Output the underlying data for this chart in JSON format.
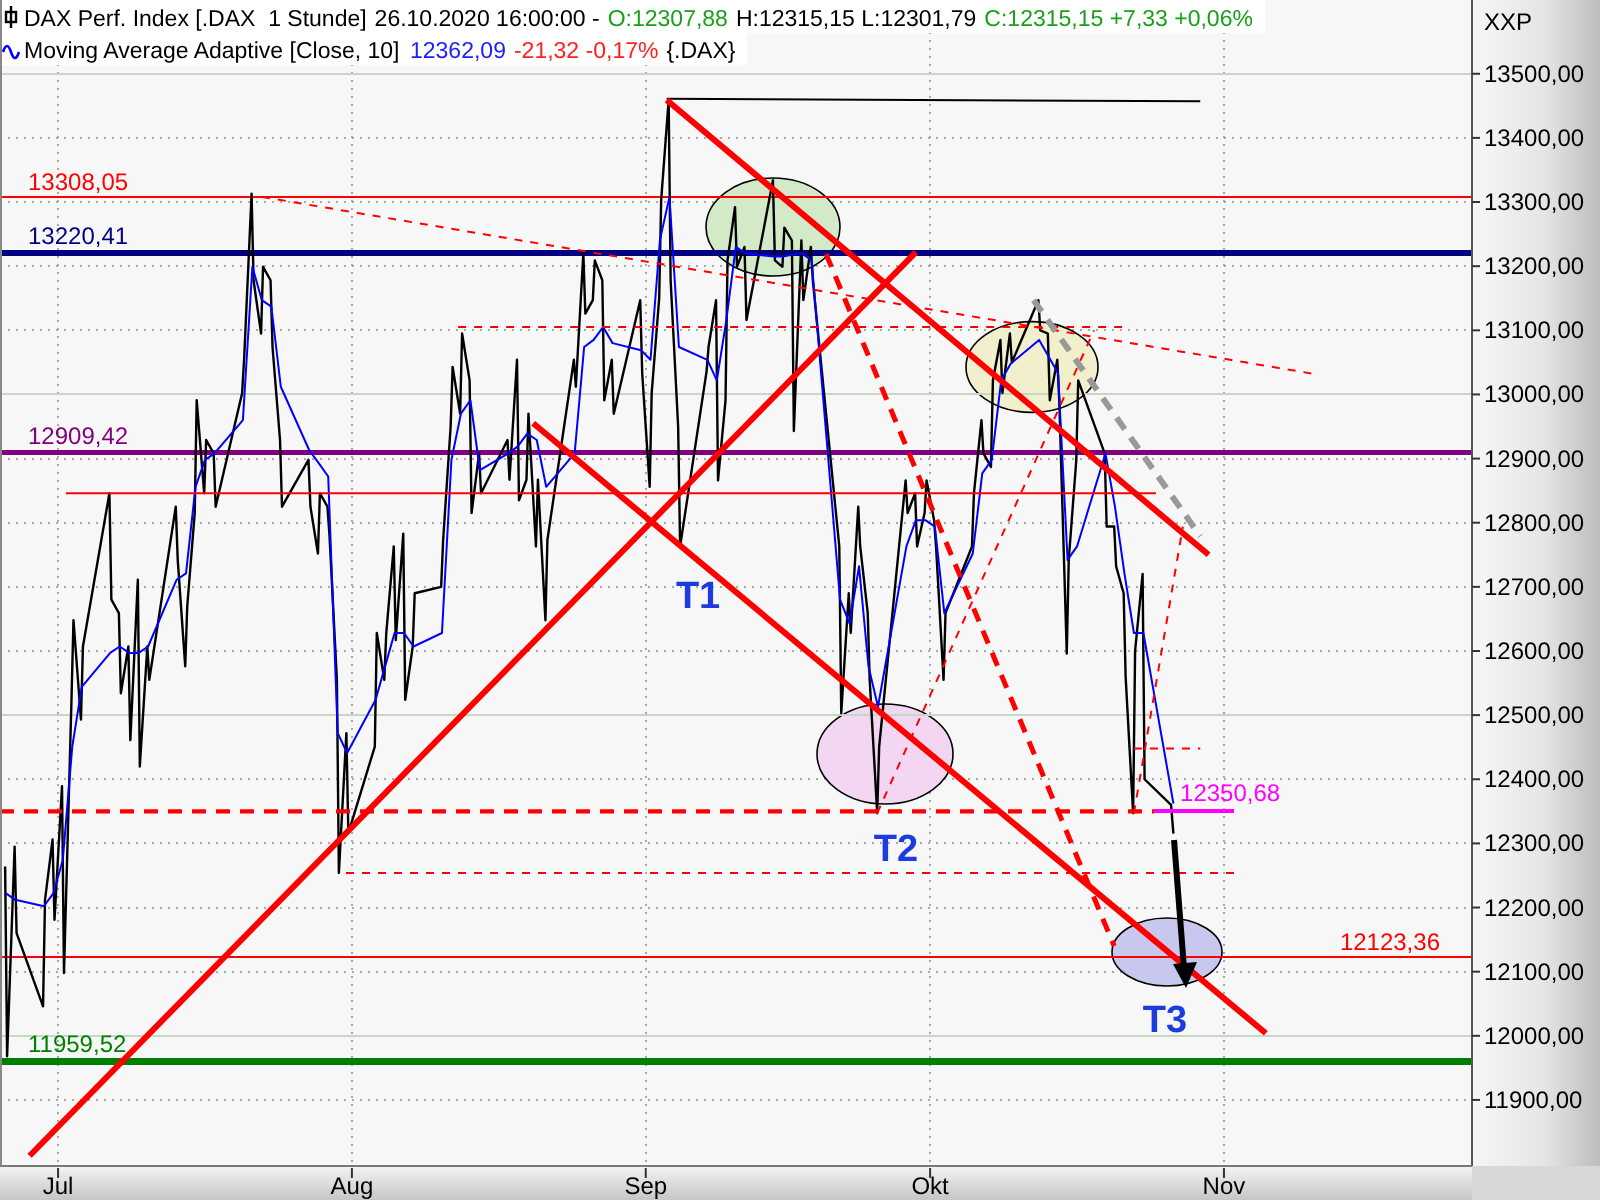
{
  "chart_data": {
    "type": "line",
    "legend": "top left",
    "grid": true,
    "ylabel": "XXP",
    "xlim": [
      "2020-06-24T21:00",
      "2020-11-27T04:00"
    ],
    "ylim": [
      11797,
      13615
    ],
    "xticks": [
      {
        "value": "2020-07-01",
        "label": "Jul"
      },
      {
        "value": "2020-08-01",
        "label": "Aug"
      },
      {
        "value": "2020-09-01",
        "label": "Sep"
      },
      {
        "value": "2020-10-01",
        "label": "Okt"
      },
      {
        "value": "2020-11-01",
        "label": "Nov"
      }
    ],
    "yticks": [
      {
        "value": 11900,
        "label": "11900,00"
      },
      {
        "value": 12000,
        "label": "12000,00"
      },
      {
        "value": 12100,
        "label": "12100,00"
      },
      {
        "value": 12200,
        "label": "12200,00"
      },
      {
        "value": 12300,
        "label": "12300,00"
      },
      {
        "value": 12400,
        "label": "12400,00"
      },
      {
        "value": 12500,
        "label": "12500,00"
      },
      {
        "value": 12600,
        "label": "12600,00"
      },
      {
        "value": 12700,
        "label": "12700,00"
      },
      {
        "value": 12800,
        "label": "12800,00"
      },
      {
        "value": 12900,
        "label": "12900,00"
      },
      {
        "value": 13000,
        "label": "13000,00"
      },
      {
        "value": 13100,
        "label": "13100,00"
      },
      {
        "value": 13200,
        "label": "13200,00"
      },
      {
        "value": 13300,
        "label": "13300,00"
      },
      {
        "value": 13400,
        "label": "13400,00"
      },
      {
        "value": 13500,
        "label": "13500,00"
      }
    ],
    "ref_lines": [
      {
        "axis": "y",
        "value": 13308.05,
        "label": "13308,05",
        "color": "#ff0000"
      },
      {
        "axis": "y",
        "value": 13220.41,
        "label": "13220,41",
        "color": "#000080"
      },
      {
        "axis": "y",
        "value": 12909.42,
        "label": "12909,42",
        "color": "#800080"
      },
      {
        "axis": "y",
        "value": 12123.36,
        "label": "12123,36",
        "color": "#ff0000"
      },
      {
        "axis": "y",
        "value": 11959.52,
        "label": "11959,52",
        "color": "#008000"
      },
      {
        "axis": "y",
        "value": 13500,
        "color": "#c4d8c4"
      },
      {
        "axis": "y",
        "value": 13000,
        "color": "#c4d8c4"
      },
      {
        "axis": "y",
        "value": 12500,
        "color": "#c4d8c4"
      },
      {
        "axis": "y",
        "value": 12000,
        "color": "#c4d8c4"
      }
    ],
    "annotations": [
      "26.10.2020 16:00:00 -",
      "O:12307,88",
      "H:12315,15 L:12301,79",
      "C:12315,15 +7,33 +0,06%",
      "12362,09",
      "-21,32 -0,17%",
      "{.DAX}",
      {
        "text": "T1",
        "x": "2020-09-04T15:00",
        "y": 12763
      },
      {
        "text": "T2",
        "x": "2020-09-25T10:00",
        "y": 12347
      },
      {
        "text": "T3",
        "x": "2020-10-26T17:00",
        "y": 12123.36
      },
      {
        "text": "12350,68",
        "x": "2020-10-24T15:00",
        "y": 12350.68
      }
    ],
    "series": [
      {
        "name": "DAX Perf. Index [.DAX  1 Stunde]",
        "color": "#000000",
        "x": [
          "2020-06-25T10:00",
          "2020-06-25T15:00",
          "2020-06-26T10:00",
          "2020-06-26T15:00",
          "2020-06-29T10:00",
          "2020-06-29T15:00",
          "2020-06-30T10:00",
          "2020-06-30T15:00",
          "2020-07-01T10:00",
          "2020-07-01T15:00",
          "2020-07-02T10:00",
          "2020-07-02T15:00",
          "2020-07-03T10:00",
          "2020-07-03T15:00",
          "2020-07-06T10:00",
          "2020-07-06T15:00",
          "2020-07-07T10:00",
          "2020-07-07T15:00",
          "2020-07-08T10:00",
          "2020-07-08T15:00",
          "2020-07-09T10:00",
          "2020-07-09T15:00",
          "2020-07-10T10:00",
          "2020-07-10T15:00",
          "2020-07-13T10:00",
          "2020-07-13T15:00",
          "2020-07-14T10:00",
          "2020-07-14T15:00",
          "2020-07-15T10:00",
          "2020-07-15T15:00",
          "2020-07-16T10:00",
          "2020-07-16T15:00",
          "2020-07-17T10:00",
          "2020-07-17T15:00",
          "2020-07-20T10:00",
          "2020-07-20T15:00",
          "2020-07-21T10:00",
          "2020-07-21T15:00",
          "2020-07-22T10:00",
          "2020-07-22T15:00",
          "2020-07-23T10:00",
          "2020-07-23T15:00",
          "2020-07-24T10:00",
          "2020-07-24T15:00",
          "2020-07-27T10:00",
          "2020-07-27T15:00",
          "2020-07-28T10:00",
          "2020-07-28T15:00",
          "2020-07-29T10:00",
          "2020-07-29T15:00",
          "2020-07-30T10:00",
          "2020-07-30T15:00",
          "2020-07-31T10:00",
          "2020-07-31T15:00",
          "2020-08-03T10:00",
          "2020-08-03T15:00",
          "2020-08-04T10:00",
          "2020-08-04T15:00",
          "2020-08-05T10:00",
          "2020-08-05T15:00",
          "2020-08-06T10:00",
          "2020-08-06T15:00",
          "2020-08-07T10:00",
          "2020-08-07T15:00",
          "2020-08-10T10:00",
          "2020-08-10T15:00",
          "2020-08-11T10:00",
          "2020-08-11T15:00",
          "2020-08-12T10:00",
          "2020-08-12T15:00",
          "2020-08-13T10:00",
          "2020-08-13T15:00",
          "2020-08-14T10:00",
          "2020-08-14T15:00",
          "2020-08-17T10:00",
          "2020-08-17T15:00",
          "2020-08-18T10:00",
          "2020-08-18T15:00",
          "2020-08-19T10:00",
          "2020-08-19T15:00",
          "2020-08-20T10:00",
          "2020-08-20T15:00",
          "2020-08-21T10:00",
          "2020-08-21T15:00",
          "2020-08-24T10:00",
          "2020-08-24T15:00",
          "2020-08-25T10:00",
          "2020-08-25T15:00",
          "2020-08-26T10:00",
          "2020-08-26T15:00",
          "2020-08-27T10:00",
          "2020-08-27T15:00",
          "2020-08-28T10:00",
          "2020-08-28T15:00",
          "2020-08-31T10:00",
          "2020-08-31T15:00",
          "2020-09-01T10:00",
          "2020-09-01T15:00",
          "2020-09-02T10:00",
          "2020-09-02T15:00",
          "2020-09-03T10:00",
          "2020-09-03T15:00",
          "2020-09-04T10:00",
          "2020-09-04T15:00",
          "2020-09-07T10:00",
          "2020-09-07T15:00",
          "2020-09-08T10:00",
          "2020-09-08T15:00",
          "2020-09-09T10:00",
          "2020-09-09T15:00",
          "2020-09-10T10:00",
          "2020-09-10T15:00",
          "2020-09-11T10:00",
          "2020-09-11T15:00",
          "2020-09-14T10:00",
          "2020-09-14T15:00",
          "2020-09-15T10:00",
          "2020-09-15T15:00",
          "2020-09-16T10:00",
          "2020-09-16T15:00",
          "2020-09-17T10:00",
          "2020-09-17T15:00",
          "2020-09-18T10:00",
          "2020-09-18T15:00",
          "2020-09-21T10:00",
          "2020-09-21T15:00",
          "2020-09-22T10:00",
          "2020-09-22T15:00",
          "2020-09-23T10:00",
          "2020-09-23T15:00",
          "2020-09-24T10:00",
          "2020-09-24T15:00",
          "2020-09-25T10:00",
          "2020-09-25T15:00",
          "2020-09-28T10:00",
          "2020-09-28T15:00",
          "2020-09-29T10:00",
          "2020-09-29T15:00",
          "2020-09-30T10:00",
          "2020-09-30T15:00",
          "2020-10-01T10:00",
          "2020-10-01T15:00",
          "2020-10-02T10:00",
          "2020-10-02T15:00",
          "2020-10-05T10:00",
          "2020-10-05T15:00",
          "2020-10-06T10:00",
          "2020-10-06T15:00",
          "2020-10-07T10:00",
          "2020-10-07T15:00",
          "2020-10-08T10:00",
          "2020-10-08T15:00",
          "2020-10-09T10:00",
          "2020-10-09T15:00",
          "2020-10-12T10:00",
          "2020-10-12T15:00",
          "2020-10-13T10:00",
          "2020-10-13T15:00",
          "2020-10-14T10:00",
          "2020-10-14T15:00",
          "2020-10-15T10:00",
          "2020-10-15T15:00",
          "2020-10-16T10:00",
          "2020-10-16T15:00",
          "2020-10-19T10:00",
          "2020-10-19T15:00",
          "2020-10-20T10:00",
          "2020-10-20T15:00",
          "2020-10-21T10:00",
          "2020-10-21T15:00",
          "2020-10-22T10:00",
          "2020-10-22T15:00",
          "2020-10-23T10:00",
          "2020-10-23T15:00",
          "2020-10-26T10:00",
          "2020-10-26T16:00"
        ],
        "values": [
          12264,
          11968,
          12295,
          12160,
          12046,
          12212,
          12306,
          12181,
          12389,
          12098,
          12524,
          12648,
          12493,
          12607,
          12846,
          12680,
          12659,
          12534,
          12607,
          12461,
          12711,
          12420,
          12607,
          12555,
          12825,
          12742,
          12576,
          12669,
          12815,
          12991,
          12846,
          12929,
          12908,
          12825,
          13002,
          13054,
          13313,
          13178,
          13095,
          13199,
          13178,
          13074,
          12929,
          12825,
          12898,
          12825,
          12752,
          12846,
          12825,
          12783,
          12555,
          12254,
          12472,
          12316,
          12451,
          12628,
          12555,
          12628,
          12763,
          12617,
          12783,
          12524,
          12607,
          12690,
          12700,
          12773,
          12950,
          13043,
          12970,
          13095,
          13022,
          12815,
          12908,
          12846,
          12929,
          12867,
          13054,
          12835,
          12867,
          12970,
          12763,
          12867,
          12648,
          12773,
          13054,
          13012,
          13220,
          13126,
          13147,
          13209,
          13178,
          12991,
          13054,
          12970,
          13147,
          13033,
          12856,
          13002,
          13150,
          13303,
          13459,
          13178,
          12950,
          12763,
          13036,
          13074,
          13147,
          12866,
          12991,
          13209,
          13292,
          13199,
          13230,
          13116,
          13334,
          13209,
          13199,
          13260,
          13240,
          12943,
          13240,
          13147,
          13230,
          13178,
          12763,
          12503,
          12690,
          12628,
          12825,
          12763,
          12659,
          12555,
          12347,
          12451,
          12866,
          12815,
          12846,
          12763,
          12815,
          12866,
          12804,
          12763,
          12555,
          12659,
          12763,
          12846,
          12960,
          12908,
          12887,
          13022,
          13085,
          13002,
          13095,
          13050,
          13147,
          13100,
          13095,
          12991,
          13054,
          12990,
          12596,
          12742,
          12897,
          13022,
          12908,
          12794,
          12794,
          12732,
          12690,
          12560,
          12347,
          12600,
          12720,
          12400,
          12360,
          12315.15
        ]
      },
      {
        "name": "Moving Average Adaptive [Close, 10]",
        "color": "#0000ff",
        "x": [
          "2020-06-25T12:00",
          "2020-06-26T12:00",
          "2020-06-29T12:00",
          "2020-06-30T12:00",
          "2020-07-01T12:00",
          "2020-07-02T12:00",
          "2020-07-03T12:00",
          "2020-07-06T12:00",
          "2020-07-07T12:00",
          "2020-07-08T12:00",
          "2020-07-09T12:00",
          "2020-07-10T12:00",
          "2020-07-13T12:00",
          "2020-07-14T12:00",
          "2020-07-15T12:00",
          "2020-07-16T12:00",
          "2020-07-17T12:00",
          "2020-07-20T12:00",
          "2020-07-21T12:00",
          "2020-07-22T12:00",
          "2020-07-23T12:00",
          "2020-07-24T12:00",
          "2020-07-27T12:00",
          "2020-07-28T12:00",
          "2020-07-29T12:00",
          "2020-07-30T12:00",
          "2020-07-31T12:00",
          "2020-08-03T12:00",
          "2020-08-04T12:00",
          "2020-08-05T12:00",
          "2020-08-06T12:00",
          "2020-08-07T12:00",
          "2020-08-10T12:00",
          "2020-08-11T12:00",
          "2020-08-12T12:00",
          "2020-08-13T12:00",
          "2020-08-14T12:00",
          "2020-08-17T12:00",
          "2020-08-18T12:00",
          "2020-08-19T12:00",
          "2020-08-20T12:00",
          "2020-08-21T12:00",
          "2020-08-24T12:00",
          "2020-08-25T12:00",
          "2020-08-26T12:00",
          "2020-08-27T12:00",
          "2020-08-28T12:00",
          "2020-08-31T12:00",
          "2020-09-01T12:00",
          "2020-09-02T12:00",
          "2020-09-03T12:00",
          "2020-09-04T12:00",
          "2020-09-07T12:00",
          "2020-09-08T12:00",
          "2020-09-09T12:00",
          "2020-09-10T12:00",
          "2020-09-11T12:00",
          "2020-09-14T12:00",
          "2020-09-15T12:00",
          "2020-09-16T12:00",
          "2020-09-17T12:00",
          "2020-09-18T12:00",
          "2020-09-21T12:00",
          "2020-09-22T12:00",
          "2020-09-23T12:00",
          "2020-09-24T12:00",
          "2020-09-25T12:00",
          "2020-09-28T12:00",
          "2020-09-29T12:00",
          "2020-09-30T12:00",
          "2020-10-01T12:00",
          "2020-10-02T12:00",
          "2020-10-05T12:00",
          "2020-10-06T12:00",
          "2020-10-07T12:00",
          "2020-10-08T12:00",
          "2020-10-09T12:00",
          "2020-10-12T12:00",
          "2020-10-13T12:00",
          "2020-10-14T12:00",
          "2020-10-15T12:00",
          "2020-10-16T12:00",
          "2020-10-19T12:00",
          "2020-10-20T12:00",
          "2020-10-21T12:00",
          "2020-10-22T12:00",
          "2020-10-23T12:00",
          "2020-10-26T16:00"
        ],
        "values": [
          12222,
          12212,
          12202,
          12222,
          12274,
          12451,
          12544,
          12597,
          12607,
          12597,
          12597,
          12607,
          12711,
          12721,
          12856,
          12898,
          12908,
          12960,
          13199,
          13147,
          13137,
          13012,
          12913,
          12893,
          12872,
          12472,
          12441,
          12524,
          12576,
          12628,
          12628,
          12607,
          12628,
          12898,
          12970,
          12991,
          12882,
          12908,
          12919,
          12939,
          12929,
          12856,
          12908,
          13074,
          13085,
          13105,
          13080,
          13069,
          13054,
          13241,
          13308,
          13074,
          13054,
          13022,
          13116,
          13230,
          13220,
          13215,
          13215,
          13218,
          13220,
          13209,
          12680,
          12643,
          12732,
          12576,
          12513,
          12763,
          12804,
          12804,
          12794,
          12659,
          12752,
          12877,
          12898,
          13022,
          13048,
          13085,
          13059,
          13033,
          12742,
          12763,
          12908,
          12825,
          12721,
          12628,
          12628,
          12362.09
        ]
      },
      {
        "color": "#ff0000",
        "line_style": "dashed",
        "x": [
          "2020-07-22T12:30",
          "2020-11-10T12:00"
        ],
        "values": [
          13308,
          13032
        ]
      },
      {
        "color": "#ff0000",
        "line_style": "dashed",
        "x": [
          "2020-08-12T05:00",
          "2020-10-21T16:00"
        ],
        "values": [
          13105,
          13105
        ]
      },
      {
        "color": "#ff0000",
        "x": [
          "2020-07-01T20:00",
          "2020-10-24T20:00"
        ],
        "values": [
          12846,
          12846
        ]
      },
      {
        "color": "#ff0000",
        "line_style": "dashed",
        "x": [
          "2020-07-31T09:00",
          "2020-11-02T06:30"
        ],
        "values": [
          12254,
          12254
        ]
      },
      {
        "color": "#ff0000",
        "line_style": "dashed",
        "x": [
          "2020-06-24T21:00",
          "2020-10-24T15:00"
        ],
        "values": [
          12350,
          12350
        ]
      },
      {
        "color": "#ff0000",
        "line_style": "dashed",
        "x": [
          "2020-10-22T12:00",
          "2020-10-29T12:00"
        ],
        "values": [
          12448,
          12448
        ]
      },
      {
        "color": "#ff00ff",
        "x": [
          "2020-10-24T15:00",
          "2020-11-02T01:30"
        ],
        "values": [
          12350.68,
          12350.68
        ]
      },
      {
        "color": "#000000",
        "x": [
          "2020-09-03T05:00",
          "2020-10-29T12:00"
        ],
        "values": [
          13461,
          13457
        ]
      },
      {
        "color": "#ff0000",
        "x": [
          "2020-06-28T00:00",
          "2020-09-29T12:00"
        ],
        "values": [
          11813,
          13222
        ]
      },
      {
        "color": "#ff0000",
        "x": [
          "2020-09-03T05:00",
          "2020-10-30T09:00"
        ],
        "values": [
          13459,
          12750
        ]
      },
      {
        "color": "#ff0000",
        "x": [
          "2020-08-20T03:00",
          "2020-11-05T10:00"
        ],
        "values": [
          12955,
          12004
        ]
      },
      {
        "color": "#999999",
        "line_style": "dashed",
        "x": [
          "2020-10-11T22:00",
          "2020-10-29T12:00"
        ],
        "values": [
          13147,
          12779
        ]
      },
      {
        "color": "#ff0000",
        "line_style": "dashed",
        "x": [
          "2020-09-20T00:30",
          "2020-10-20T10:00"
        ],
        "values": [
          13219,
          12140
        ]
      },
      {
        "color": "#ff0000",
        "line_style": "dashed",
        "x": [
          "2020-09-25T10:00",
          "2020-10-18T07:00"
        ],
        "values": [
          12347,
          13100
        ]
      },
      {
        "color": "#ff0000",
        "line_style": "dashed",
        "x": [
          "2020-10-22T12:00",
          "2020-10-27T16:00"
        ],
        "values": [
          12347,
          12794
        ]
      }
    ]
  }
}
